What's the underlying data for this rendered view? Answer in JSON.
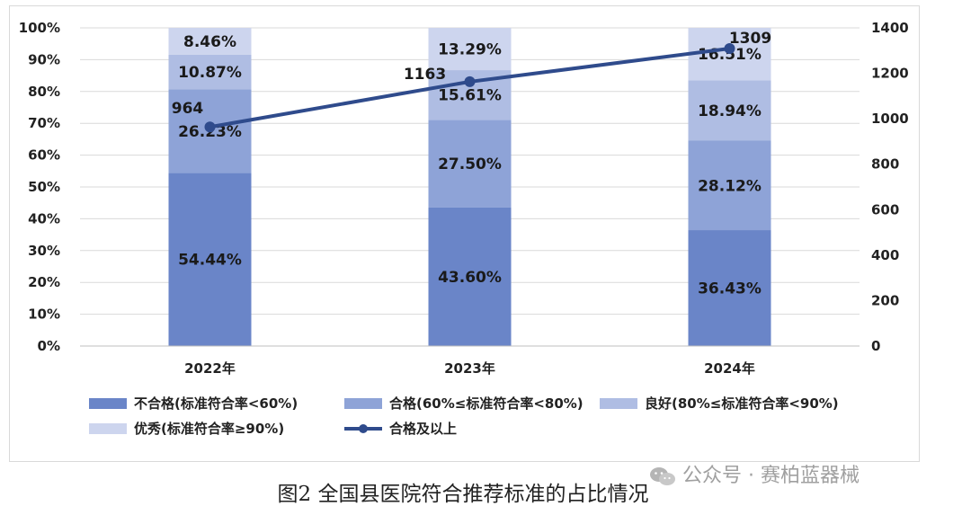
{
  "chart_data": {
    "type": "bar",
    "stacked": true,
    "percent_stacked": true,
    "categories": [
      "2022年",
      "2023年",
      "2024年"
    ],
    "y_left_ticks": [
      "0%",
      "10%",
      "20%",
      "30%",
      "40%",
      "50%",
      "60%",
      "70%",
      "80%",
      "90%",
      "100%"
    ],
    "y_left_range": [
      0,
      100
    ],
    "y_right_ticks": [
      "0",
      "200",
      "400",
      "600",
      "800",
      "1000",
      "1200",
      "1400"
    ],
    "y_right_range": [
      0,
      1400
    ],
    "grid": true,
    "legend_position": "bottom",
    "series": [
      {
        "name": "不合格(标准符合率<60%)",
        "values": [
          54.44,
          43.6,
          36.43
        ],
        "labels": [
          "54.44%",
          "43.60%",
          "36.43%"
        ],
        "color": "#6a85c8"
      },
      {
        "name": "合格(60%≤标准符合率<80%)",
        "values": [
          26.23,
          27.5,
          28.12
        ],
        "labels": [
          "26.23%",
          "27.50%",
          "28.12%"
        ],
        "color": "#8ea3d7"
      },
      {
        "name": "良好(80%≤标准符合率<90%)",
        "values": [
          10.87,
          15.61,
          18.94
        ],
        "labels": [
          "10.87%",
          "15.61%",
          "18.94%"
        ],
        "color": "#afbde3"
      },
      {
        "name": "优秀(标准符合率≥90%)",
        "values": [
          8.46,
          13.29,
          16.51
        ],
        "labels": [
          "8.46%",
          "13.29%",
          "16.51%"
        ],
        "color": "#cdd5ee"
      }
    ],
    "line_series": {
      "name": "合格及以上",
      "axis": "right",
      "values": [
        964,
        1163,
        1309
      ],
      "labels": [
        "964",
        "1163",
        "1309"
      ],
      "color": "#2f4b8c"
    }
  },
  "caption": "图2  全国县医院符合推荐标准的占比情况",
  "watermark": "公众号 · 赛柏蓝器械",
  "watermark_icon": "wechat-icon"
}
